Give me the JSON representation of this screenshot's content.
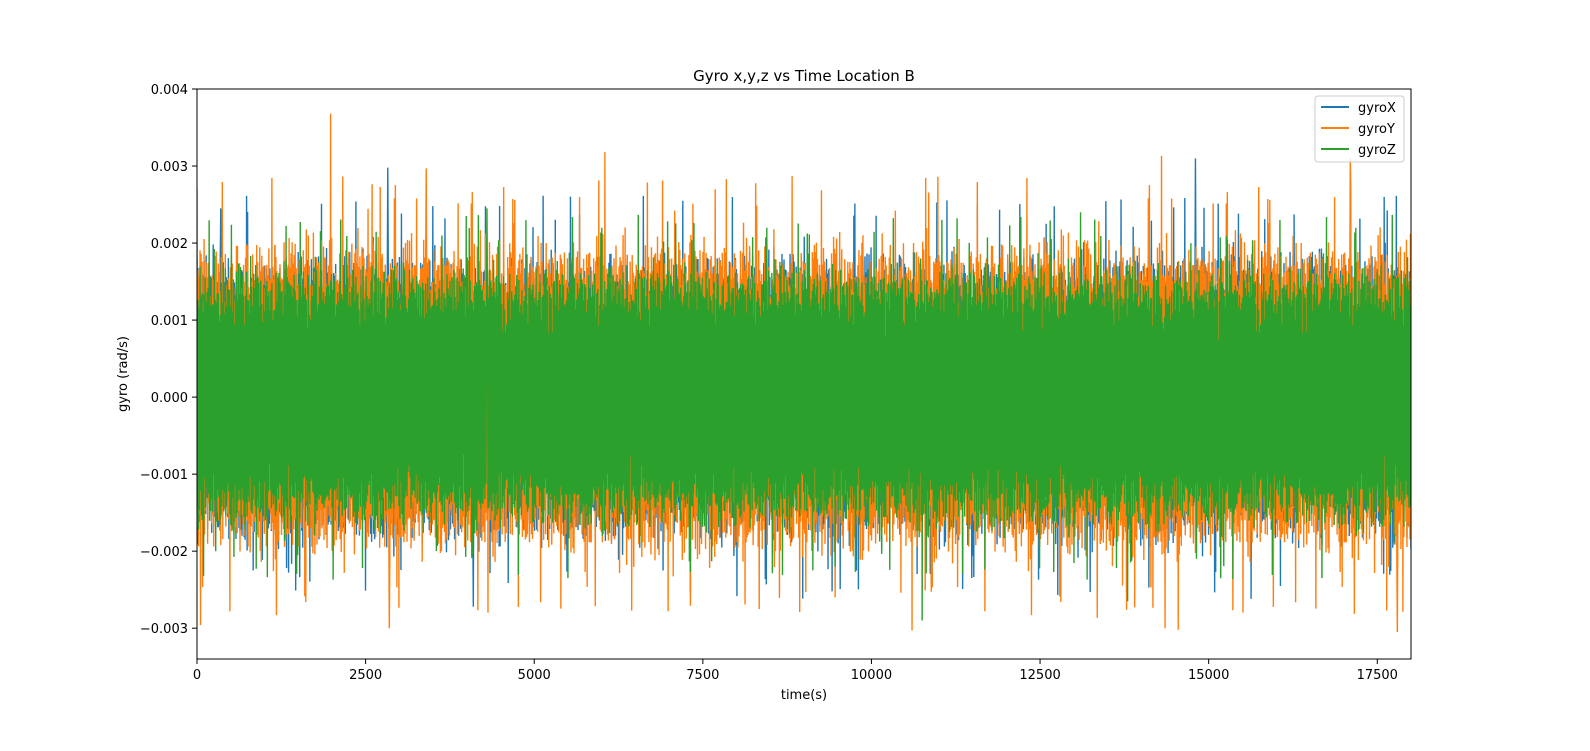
{
  "chart_data": {
    "type": "line",
    "title": "Gyro x,y,z vs Time Location B",
    "xlabel": "time(s)",
    "ylabel": "gyro (rad/s)",
    "xlim": [
      0,
      18000
    ],
    "ylim": [
      -0.0034,
      0.004
    ],
    "x_ticks": [
      0,
      2500,
      5000,
      7500,
      10000,
      12500,
      15000,
      17500
    ],
    "x_tick_labels": [
      "0",
      "2500",
      "5000",
      "7500",
      "10000",
      "12500",
      "15000",
      "17500"
    ],
    "y_ticks": [
      -0.003,
      -0.002,
      -0.001,
      0.0,
      0.001,
      0.002,
      0.003,
      0.004
    ],
    "y_tick_labels": [
      "−0.003",
      "−0.002",
      "−0.001",
      "0.000",
      "0.001",
      "0.002",
      "0.003",
      "0.004"
    ],
    "grid": false,
    "legend_position": "top-right",
    "series": [
      {
        "name": "gyroX",
        "color": "#1f77b4",
        "envelope": {
          "typical_max": 0.0021,
          "typical_min": -0.0021
        },
        "notable_points": [
          {
            "x": 2830,
            "y": 0.00298
          },
          {
            "x": 4100,
            "y": -0.00272
          },
          {
            "x": 14800,
            "y": 0.0031
          },
          {
            "x": 350,
            "y": 0.00245
          }
        ]
      },
      {
        "name": "gyroY",
        "color": "#ff7f0e",
        "envelope": {
          "typical_max": 0.0023,
          "typical_min": -0.0023
        },
        "notable_points": [
          {
            "x": 0,
            "y": 0.0027
          },
          {
            "x": 1980,
            "y": 0.00368
          },
          {
            "x": 3400,
            "y": 0.00297
          },
          {
            "x": 6050,
            "y": 0.00318
          },
          {
            "x": 14300,
            "y": 0.00313
          },
          {
            "x": 17100,
            "y": 0.0031
          },
          {
            "x": 50,
            "y": -0.00296
          },
          {
            "x": 2850,
            "y": -0.003
          },
          {
            "x": 10600,
            "y": -0.00303
          },
          {
            "x": 14350,
            "y": -0.003
          },
          {
            "x": 14550,
            "y": -0.00302
          },
          {
            "x": 17800,
            "y": -0.00305
          }
        ]
      },
      {
        "name": "gyroZ",
        "color": "#2ca02c",
        "envelope": {
          "typical_max": 0.0019,
          "typical_min": -0.0019
        },
        "notable_points": [
          {
            "x": 4300,
            "y": 0.00245
          },
          {
            "x": 13100,
            "y": 0.0024
          },
          {
            "x": 13800,
            "y": -0.00265
          },
          {
            "x": 10750,
            "y": -0.0029
          }
        ]
      }
    ]
  }
}
